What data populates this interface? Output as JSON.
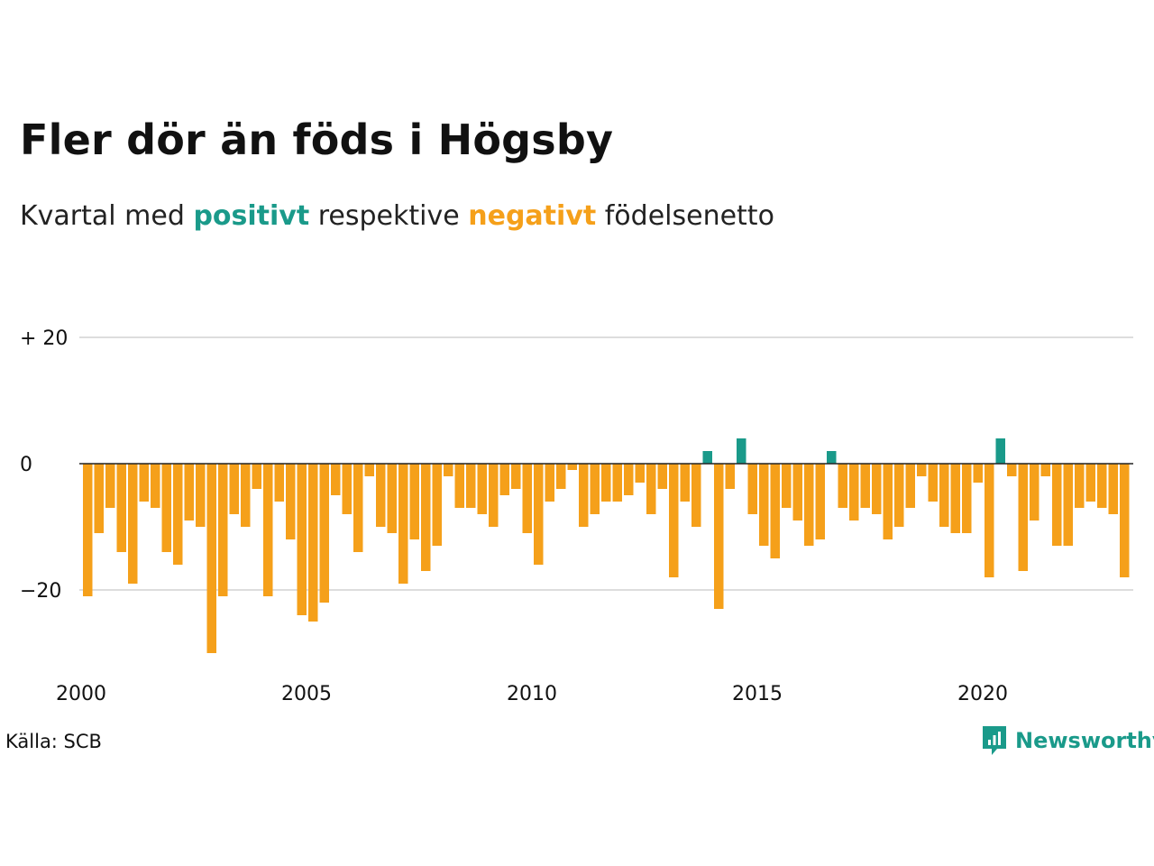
{
  "title": "Fler dör än föds i Högsby",
  "subtitle": {
    "prefix": "Kvartal med",
    "positive_word": "positivt",
    "middle": "respektive",
    "negative_word": "negativt",
    "suffix": "födelsenetto"
  },
  "source": "Källa: SCB",
  "logo_text": "Newsworthy",
  "colors": {
    "positive": "#1a9a8a",
    "negative": "#f5a01a",
    "grid": "#dddddd",
    "zero_line": "#222222"
  },
  "chart_data": {
    "type": "bar",
    "x_start": "2000-Q1",
    "x_ticks": [
      "2000",
      "2005",
      "2010",
      "2015",
      "2020"
    ],
    "y_ticks": [
      {
        "value": 20,
        "label": "+ 20"
      },
      {
        "value": 0,
        "label": "0"
      },
      {
        "value": -20,
        "label": "−20"
      }
    ],
    "ylim": [
      -30,
      20
    ],
    "grid": true,
    "values": [
      -21,
      -11,
      -7,
      -14,
      -19,
      -6,
      -7,
      -14,
      -16,
      -9,
      -10,
      -30,
      -21,
      -8,
      -10,
      -4,
      -21,
      -6,
      -12,
      -24,
      -25,
      -22,
      -5,
      -8,
      -14,
      -2,
      -10,
      -11,
      -19,
      -12,
      -17,
      -13,
      -2,
      -7,
      -7,
      -8,
      -10,
      -5,
      -4,
      -11,
      -16,
      -6,
      -4,
      -1,
      -10,
      -8,
      -6,
      -6,
      -5,
      -3,
      -8,
      -4,
      -18,
      -6,
      -10,
      2,
      -23,
      -4,
      4,
      -8,
      -13,
      -15,
      -7,
      -9,
      -13,
      -12,
      2,
      -7,
      -9,
      -7,
      -8,
      -12,
      -10,
      -7,
      -2,
      -6,
      -10,
      -11,
      -11,
      -3,
      -18,
      4,
      -2,
      -17,
      -9,
      -2,
      -13,
      -13,
      -7,
      -6,
      -7,
      -8,
      -18
    ]
  }
}
